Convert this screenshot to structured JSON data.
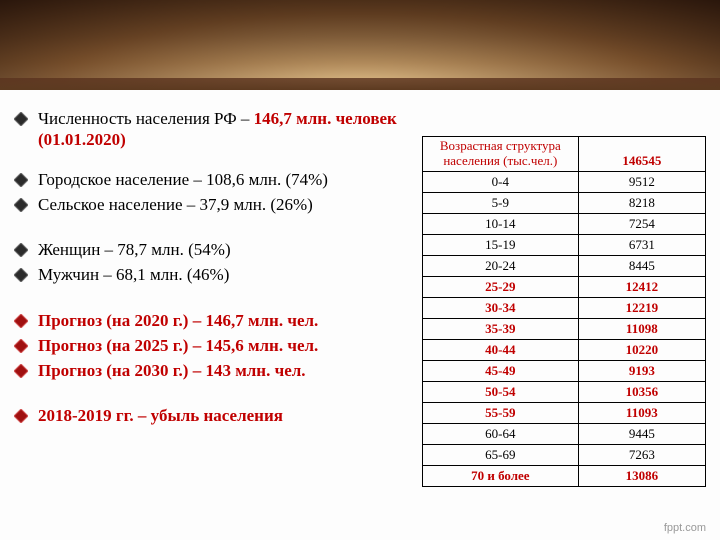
{
  "colors": {
    "red": "#c00000",
    "black": "#000000",
    "diamond_black_fill": "#2b2b2b",
    "diamond_black_edge": "#6c6c6c",
    "diamond_red_fill": "#a01010",
    "diamond_red_edge": "#d45858"
  },
  "headline": {
    "prefix": "Численность населения РФ – ",
    "value": "146,7 млн. человек (01.01.2020)"
  },
  "urban_rural": {
    "urban": "Городское население – 108,6 млн. (74%)",
    "rural": "Сельское население – 37,9 млн. (26%)"
  },
  "sex": {
    "female": "Женщин – 78,7 млн. (54%)",
    "male": "Мужчин – 68,1 млн. (46%)"
  },
  "forecast": {
    "y2020": "Прогноз (на 2020 г.) – 146,7 млн. чел.",
    "y2025": "Прогноз (на 2025 г.) – 145,6 млн. чел.",
    "y2030": "Прогноз (на 2030 г.) – 143 млн. чел."
  },
  "decline": "2018-2019 гг. – убыль населения",
  "table": {
    "header_label": "Возрастная структура населения (тыс.чел.)",
    "header_total": "146545",
    "rows": [
      {
        "range": "0-4",
        "value": "9512",
        "red": false
      },
      {
        "range": "5-9",
        "value": "8218",
        "red": false
      },
      {
        "range": "10-14",
        "value": "7254",
        "red": false
      },
      {
        "range": "15-19",
        "value": "6731",
        "red": false
      },
      {
        "range": "20-24",
        "value": "8445",
        "red": false
      },
      {
        "range": "25-29",
        "value": "12412",
        "red": true
      },
      {
        "range": "30-34",
        "value": "12219",
        "red": true
      },
      {
        "range": "35-39",
        "value": "11098",
        "red": true
      },
      {
        "range": "40-44",
        "value": "10220",
        "red": true
      },
      {
        "range": "45-49",
        "value": "9193",
        "red": true
      },
      {
        "range": "50-54",
        "value": "10356",
        "red": true
      },
      {
        "range": "55-59",
        "value": "11093",
        "red": true
      },
      {
        "range": "60-64",
        "value": "9445",
        "red": false
      },
      {
        "range": "65-69",
        "value": "7263",
        "red": false
      },
      {
        "range": "70 и более",
        "value": "13086",
        "red": true
      }
    ]
  },
  "footer": "fppt.com"
}
